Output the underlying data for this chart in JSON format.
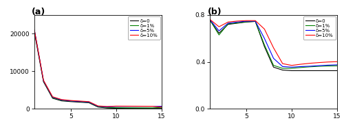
{
  "panel_a": {
    "title": "(a)",
    "xlim": [
      1,
      15
    ],
    "ylim": [
      0,
      25000
    ],
    "yticks": [
      0,
      10000,
      20000
    ],
    "xticks": [
      5,
      10,
      15
    ],
    "x": [
      1,
      2,
      3,
      4,
      5,
      6,
      7,
      8,
      9,
      10,
      11,
      12,
      13,
      14,
      15
    ],
    "series": {
      "d0": [
        20400,
        7200,
        2800,
        2100,
        1900,
        1750,
        1600,
        450,
        200,
        130,
        110,
        100,
        95,
        90,
        85
      ],
      "d1": [
        20800,
        7400,
        2950,
        2250,
        2050,
        1900,
        1700,
        550,
        350,
        280,
        260,
        250,
        240,
        230,
        380
      ],
      "d5": [
        21000,
        7500,
        3100,
        2350,
        2100,
        1950,
        1800,
        650,
        500,
        620,
        630,
        640,
        650,
        660,
        660
      ],
      "d10": [
        21000,
        7600,
        3200,
        2450,
        2200,
        2050,
        1900,
        750,
        600,
        700,
        690,
        680,
        670,
        660,
        460
      ]
    },
    "colors": {
      "d0": "#000000",
      "d1": "#008000",
      "d5": "#0000ff",
      "d10": "#ff0000"
    },
    "labels": {
      "d0": "δ=0",
      "d1": "δ=1%",
      "d5": "δ=5%",
      "d10": "δ=10%"
    }
  },
  "panel_b": {
    "title": "(b)",
    "xlim": [
      1,
      15
    ],
    "ylim": [
      0,
      0.8
    ],
    "yticks": [
      0,
      0.4,
      0.8
    ],
    "xticks": [
      5,
      10,
      15
    ],
    "x": [
      1,
      2,
      3,
      4,
      5,
      6,
      7,
      8,
      9,
      10,
      11,
      12,
      13,
      14,
      15
    ],
    "series": {
      "d0": [
        0.755,
        0.645,
        0.72,
        0.73,
        0.74,
        0.745,
        0.53,
        0.355,
        0.33,
        0.325,
        0.325,
        0.325,
        0.325,
        0.325,
        0.325
      ],
      "d1": [
        0.757,
        0.63,
        0.725,
        0.733,
        0.742,
        0.745,
        0.545,
        0.37,
        0.345,
        0.345,
        0.352,
        0.358,
        0.362,
        0.365,
        0.366
      ],
      "d5": [
        0.76,
        0.665,
        0.73,
        0.74,
        0.747,
        0.747,
        0.6,
        0.43,
        0.36,
        0.355,
        0.36,
        0.363,
        0.368,
        0.372,
        0.375
      ],
      "d10": [
        0.762,
        0.7,
        0.74,
        0.748,
        0.752,
        0.752,
        0.68,
        0.52,
        0.385,
        0.37,
        0.38,
        0.388,
        0.394,
        0.399,
        0.402
      ]
    },
    "colors": {
      "d0": "#000000",
      "d1": "#008000",
      "d5": "#0000ff",
      "d10": "#ff0000"
    },
    "labels": {
      "d0": "δ=0",
      "d1": "δ=1%",
      "d5": "δ=5%",
      "d10": "δ=10%"
    }
  }
}
